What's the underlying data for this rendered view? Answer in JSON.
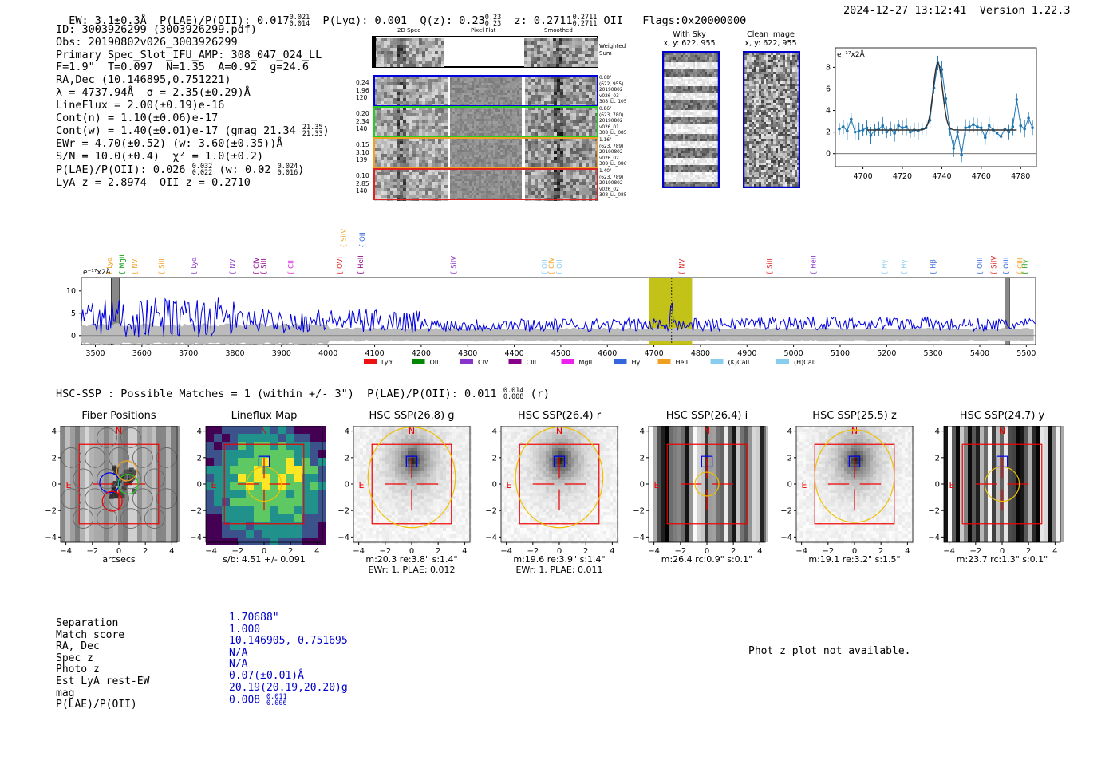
{
  "header": {
    "ew": "EW: 3.1±0.3Å",
    "plae": "P(LAE)/P(OII): 0.017",
    "plae_hi": "0.021",
    "plae_lo": "0.014",
    "plya": "P(Lyα): 0.001",
    "qz": "Q(z): 0.23",
    "qz_hi": "0.23",
    "qz_lo": "0.23",
    "z": "z: 0.2711",
    "z_hi": "0.2711",
    "z_lo": "0.2711",
    "z_line": "OII",
    "flags": "Flags:0x20000000",
    "timestamp": "2024-12-27 13:12:41",
    "version": "Version 1.22.3"
  },
  "info": {
    "id": "ID: 3003926299 (3003926299.pdf)",
    "obs": "Obs: 20190802v026_3003926299",
    "primary": "Primary Spec_Slot_IFU_AMP: 308_047_024_LL",
    "fit": "F=1.9\"  T=0.097  N=1.35  A=0.92  g=24.6",
    "radec": "RA,Dec (10.146895,0.751221)",
    "lambda": "λ = 4737.94Å  σ = 2.35(±0.29)Å",
    "lineflux": "LineFlux = 2.00(±0.19)e-16",
    "contn": "Cont(n) = 1.10(±0.06)e-17",
    "contw": "Cont(w) = 1.40(±0.01)e-17 (gmag 21.34",
    "contw_hi": "21.35",
    "contw_lo": "21.33",
    "contw_end": ")",
    "ewr": "EWr = 4.70(±0.52) (w: 3.60(±0.35))Å",
    "sn": "S/N = 10.0(±0.4)  χ² = 1.0(±0.2)",
    "plae2": "P(LAE)/P(OII): 0.026",
    "plae2_hi": "0.032",
    "plae2_lo": "0.022",
    "plae2_w": "(w: 0.02",
    "plae2_w_hi": "0.024",
    "plae2_w_lo": "0.016",
    "plae2_end": ")",
    "lyaz": "LyA z = 2.8974  OII z = 0.2710"
  },
  "cutouts": {
    "col_2d": "2D Spec",
    "col_flat": "Pixel Flat",
    "col_smooth": "Smoothed",
    "weighted": "Weighted",
    "weighted2": "Sum",
    "rows": [
      {
        "l1": "0.24",
        "l2": "1.96",
        "l3": "120",
        "r1": "0.68\"",
        "r2": "(622, 955)",
        "r3": "20190802",
        "r4": "v026_03",
        "r5": "308_LL_105",
        "color": "#0000dd"
      },
      {
        "l1": "0.20",
        "l2": "2.34",
        "l3": "140",
        "r1": "0.86\"",
        "r2": "(623, 780)",
        "r3": "20190802",
        "r4": "v026_01",
        "r5": "308_LL_085",
        "color": "#22cc22"
      },
      {
        "l1": "0.15",
        "l2": "3.10",
        "l3": "139",
        "r1": "1.16\"",
        "r2": "(623, 789)",
        "r3": "20190802",
        "r4": "v026_02",
        "r5": "308_LL_086",
        "color": "#f0a020"
      },
      {
        "l1": "0.10",
        "l2": "2.85",
        "l3": "140",
        "r1": "1.40\"",
        "r2": "(623, 789)",
        "r3": "20190802",
        "r4": "v026_02",
        "r5": "308_LL_085",
        "color": "#dd2222"
      }
    ]
  },
  "sky": {
    "with_sky": "With Sky",
    "with_sky_xy": "x, y: 622, 955",
    "clean": "Clean Image",
    "clean_xy": "x, y: 622, 955"
  },
  "chart_data": [
    {
      "type": "line",
      "title": "",
      "ylabel": "e⁻¹⁷x2Å",
      "xlim": [
        4686,
        4788
      ],
      "ylim": [
        -1.2,
        9.8
      ],
      "xticks": [
        "4700",
        "4720",
        "4740",
        "4760",
        "4780"
      ],
      "yticks": [
        "0",
        "2",
        "4",
        "6",
        "8"
      ],
      "series": [
        {
          "name": "data",
          "x": [
            4688,
            4690,
            4692,
            4694,
            4696,
            4698,
            4700,
            4702,
            4704,
            4706,
            4708,
            4710,
            4712,
            4714,
            4716,
            4718,
            4720,
            4722,
            4724,
            4726,
            4728,
            4730,
            4732,
            4734,
            4736,
            4738,
            4740,
            4742,
            4744,
            4746,
            4748,
            4750,
            4752,
            4754,
            4756,
            4758,
            4760,
            4762,
            4764,
            4766,
            4768,
            4770,
            4772,
            4774,
            4776,
            4778,
            4780,
            4782,
            4784,
            4786
          ],
          "y": [
            2.3,
            2.5,
            2.1,
            3.2,
            2.0,
            2.1,
            2.2,
            2.4,
            1.7,
            2.2,
            2.3,
            2.6,
            2.0,
            2.3,
            1.9,
            2.6,
            2.4,
            2.5,
            2.0,
            2.2,
            2.1,
            2.3,
            2.4,
            3.1,
            6.1,
            8.4,
            7.8,
            5.1,
            2.3,
            0.5,
            2.0,
            -0.1,
            2.4,
            2.5,
            2.7,
            2.5,
            2.4,
            1.5,
            2.6,
            2.2,
            1.9,
            1.6,
            2.3,
            2.0,
            2.5,
            5.0,
            2.6,
            2.3,
            3.3,
            2.4
          ]
        },
        {
          "name": "fit",
          "center": 4738.0,
          "sigma": 2.35,
          "amp": 6.2,
          "base": 2.2
        }
      ]
    },
    {
      "type": "line",
      "title": "",
      "ylabel": "e⁻¹⁷x2Å",
      "xlim": [
        3470,
        5520
      ],
      "ylim": [
        -2,
        13
      ],
      "xticks": [
        "3500",
        "3600",
        "3700",
        "3800",
        "3900",
        "4000",
        "4100",
        "4200",
        "4300",
        "4400",
        "4500",
        "4600",
        "4700",
        "4800",
        "4900",
        "5000",
        "5100",
        "5200",
        "5300",
        "5400",
        "5500"
      ],
      "yticks": [
        "0",
        "5",
        "10"
      ],
      "highlight": [
        4690,
        4782
      ],
      "line_center": 4738,
      "shaded": [
        [
          3534,
          3552
        ],
        [
          5454,
          5464
        ]
      ],
      "emission_lines": [
        {
          "name": "Lyα",
          "x": 3530,
          "color": "#f0a020"
        },
        {
          "name": "MgII",
          "x": 3557,
          "color": "#009900"
        },
        {
          "name": "NV",
          "x": 3585,
          "color": "#f0a020"
        },
        {
          "name": "SiII",
          "x": 3642,
          "color": "#f0a020"
        },
        {
          "name": "Lyα",
          "x": 3712,
          "color": "#8833cc"
        },
        {
          "name": "NV",
          "x": 3795,
          "color": "#8833cc"
        },
        {
          "name": "CIV",
          "x": 3845,
          "color": "#880088"
        },
        {
          "name": "SiII",
          "x": 3862,
          "color": "#880088"
        },
        {
          "name": "CII",
          "x": 3920,
          "color": "#dd22dd"
        },
        {
          "name": "SiIV",
          "x": 4033,
          "color": "#f0a020"
        },
        {
          "name": "OII",
          "x": 4073,
          "color": "#3366dd"
        },
        {
          "name": "OVI",
          "x": 4025,
          "color": "#dd2222"
        },
        {
          "name": "HeII",
          "x": 4070,
          "color": "#880088"
        },
        {
          "name": "SiIV",
          "x": 4270,
          "color": "#8833cc"
        },
        {
          "name": "OII",
          "x": 4465,
          "color": "#88ccee"
        },
        {
          "name": "CIV",
          "x": 4480,
          "color": "#f0a020"
        },
        {
          "name": "OII",
          "x": 4497,
          "color": "#88ccee"
        },
        {
          "name": "NV",
          "x": 4760,
          "color": "#dd2222"
        },
        {
          "name": "SiII",
          "x": 4948,
          "color": "#dd2222"
        },
        {
          "name": "HeII",
          "x": 5043,
          "color": "#8833cc"
        },
        {
          "name": "Hγ",
          "x": 5195,
          "color": "#88ccee"
        },
        {
          "name": "Hγ",
          "x": 5237,
          "color": "#88ccee"
        },
        {
          "name": "Hβ",
          "x": 5300,
          "color": "#3366dd"
        },
        {
          "name": "OIII",
          "x": 5400,
          "color": "#3366dd"
        },
        {
          "name": "SiIV",
          "x": 5430,
          "color": "#dd2222"
        },
        {
          "name": "OIII",
          "x": 5457,
          "color": "#3366dd"
        },
        {
          "name": "CIII",
          "x": 5487,
          "color": "#f0a020"
        },
        {
          "name": "Hγ",
          "x": 5497,
          "color": "#009900"
        }
      ],
      "legend": [
        {
          "name": "Lyα",
          "color": "#ee1111"
        },
        {
          "name": "OII",
          "color": "#008800"
        },
        {
          "name": "CIV",
          "color": "#8833cc"
        },
        {
          "name": "CIII",
          "color": "#880088"
        },
        {
          "name": "MgII",
          "color": "#ee22ee"
        },
        {
          "name": "Hγ",
          "color": "#3366dd"
        },
        {
          "name": "HeII",
          "color": "#f0a020"
        },
        {
          "name": "(K)CaII",
          "color": "#88ccee"
        },
        {
          "name": "(H)CaII",
          "color": "#88ccee"
        }
      ]
    }
  ],
  "hsc": {
    "summary": "HSC-SSP : Possible Matches = 1 (within +/- 3\")  P(LAE)/P(OII): 0.011",
    "summary_hi": "0.014",
    "summary_lo": "0.008",
    "summary_band": "(r)",
    "tick_labels": [
      "−4",
      "−2",
      "0",
      "2",
      "4"
    ],
    "ytick_labels": [
      "4",
      "2",
      "0",
      "−2",
      "−4"
    ],
    "n_label": "N",
    "e_label": "E",
    "panels": [
      {
        "title": "Fiber Positions",
        "cap1": "arcsecs",
        "cap2": "",
        "style": "fibers"
      },
      {
        "title": "Lineflux Map",
        "cap1": "s/b: 4.51 +/- 0.091",
        "cap2": "",
        "style": "lineflux"
      },
      {
        "title": "HSC SSP(26.8) g",
        "cap1": "m:20.3  re:3.8\"  s:1.4\"",
        "cap2": "EWr: 1. PLAE: 0.012",
        "style": "galaxy"
      },
      {
        "title": "HSC SSP(26.4) r",
        "cap1": "m:19.6  re:3.9\"  s:1.4\"",
        "cap2": "EWr: 1. PLAE: 0.011",
        "style": "galaxy2"
      },
      {
        "title": "HSC SSP(26.4) i",
        "cap1": "m:26.4  rc:0.9\"  s:0.1\"",
        "cap2": "",
        "style": "stripes"
      },
      {
        "title": "HSC SSP(25.5) z",
        "cap1": "m:19.1  re:3.2\"  s:1.5\"",
        "cap2": "",
        "style": "galaxy3"
      },
      {
        "title": "HSC SSP(24.7) y",
        "cap1": "m:23.7  rc:1.3\"  s:0.1\"",
        "cap2": "",
        "style": "stripes2"
      }
    ]
  },
  "match": {
    "labels": [
      "Separation",
      "Match score",
      "RA, Dec",
      "Spec z",
      "Photo z",
      "Est LyA rest-EW",
      "mag",
      "P(LAE)/P(OII)"
    ],
    "values": [
      "1.70688\"",
      "1.000",
      "10.146905, 0.751695",
      "N/A",
      "N/A",
      "0.07(±0.01)Å",
      "20.19(20.19,20.20)g",
      "0.008"
    ],
    "plae_hi": "0.011",
    "plae_lo": "0.006",
    "photz_note": "Phot z plot not available."
  }
}
